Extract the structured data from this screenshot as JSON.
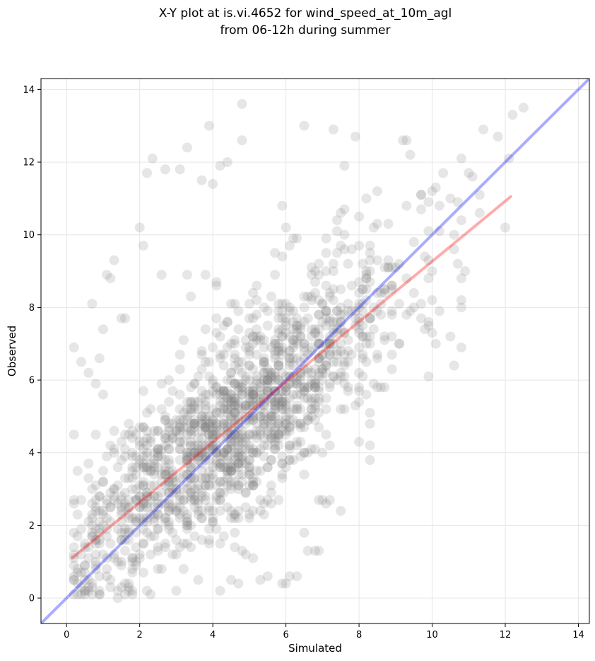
{
  "chart_data": {
    "type": "scatter",
    "title": [
      "X-Y plot at is.vi.4652 for wind_speed_at_10m_agl",
      "from 06-12h during summer"
    ],
    "xlabel": "Simulated",
    "ylabel": "Observed",
    "xlim": [
      -0.7,
      14.3
    ],
    "ylim": [
      -0.7,
      14.3
    ],
    "xticks": [
      "0",
      "2",
      "4",
      "6",
      "8",
      "10",
      "12",
      "14"
    ],
    "yticks": [
      "0",
      "2",
      "4",
      "6",
      "8",
      "10",
      "12",
      "14"
    ],
    "grid": true,
    "point_color": "#808080",
    "point_alpha": 0.2,
    "reference_line": {
      "name": "1:1 line",
      "color": "#0000ff",
      "alpha": 0.33,
      "x": [
        -0.7,
        14.3
      ],
      "y": [
        -0.7,
        14.3
      ]
    },
    "fit_line": {
      "name": "regression fit",
      "color": "#ff0000",
      "alpha": 0.33,
      "x": [
        0.15,
        12.15
      ],
      "y": [
        1.1,
        11.05
      ]
    },
    "points": {
      "x": [
        4.8,
        11.4,
        11.8,
        12.1,
        6.5,
        7.3,
        7.9,
        7.6,
        2.35,
        3.3,
        4.0,
        4.4,
        2.2,
        2.7,
        3.1,
        12.5,
        12.2,
        3.9,
        4.2,
        4.8,
        3.7,
        5.9,
        9.3,
        2.0,
        2.1,
        10.3,
        10.1,
        9.7,
        10.8,
        11.1,
        1.3,
        1.1,
        1.2,
        2.6,
        3.3,
        3.8,
        4.1,
        0.7,
        1.0,
        1.5,
        1.6,
        0.2,
        0.4,
        0.6,
        0.8,
        0.3,
        1.1,
        1.7,
        2.3,
        5.9,
        6.3,
        6.9,
        8.0,
        8.3,
        8.6,
        7.7,
        10.5,
        10.1,
        10.8,
        11.3,
        9.2,
        9.4,
        9.7,
        10.2,
        6.0,
        6.3,
        7.4,
        10.8,
        12.0,
        8.4,
        3.4,
        5.6,
        4.3,
        7.1,
        7.5,
        6.6,
        6.8,
        7.0,
        6.5,
        7.2,
        4.2,
        4.7,
        4.6,
        6.1,
        6.0,
        5.3,
        5.5,
        6.9,
        8.3,
        7.4,
        7.6,
        0.9,
        3.5,
        4.0,
        4.8,
        5.1,
        3.0,
        3.6,
        6.0,
        1.3,
        2.0,
        2.5
      ],
      "y": [
        13.6,
        12.9,
        12.7,
        12.1,
        13.0,
        12.9,
        12.7,
        11.9,
        12.1,
        12.4,
        11.4,
        12.0,
        11.7,
        11.8,
        11.8,
        13.5,
        13.3,
        13.0,
        11.9,
        12.6,
        11.5,
        10.8,
        12.6,
        10.2,
        9.7,
        11.7,
        11.3,
        11.1,
        12.1,
        11.6,
        9.3,
        8.9,
        8.8,
        8.9,
        8.9,
        8.9,
        8.7,
        8.1,
        7.4,
        7.7,
        7.7,
        6.9,
        6.5,
        6.2,
        5.9,
        2.3,
        1.1,
        0.3,
        0.1,
        0.4,
        0.6,
        1.3,
        4.3,
        3.8,
        5.8,
        7.9,
        7.2,
        7.0,
        8.0,
        10.6,
        12.6,
        12.2,
        11.1,
        10.8,
        10.2,
        9.9,
        10.4,
        8.2,
        10.2,
        10.2,
        8.3,
        8.3,
        5.7,
        2.6,
        2.4,
        1.3,
        1.3,
        2.7,
        1.8,
        2.7,
        0.2,
        0.4,
        1.4,
        0.6,
        0.4,
        0.5,
        0.6,
        2.7,
        9.3,
        10.1,
        10.0,
        6.6,
        2.5,
        2.1,
        1.3,
        1.1,
        1.2,
        0.5,
        7.3,
        4.0,
        3.1,
        2.5
      ]
    },
    "background_cloud": {
      "description_free_params": true,
      "count": 1500,
      "slope": 0.83,
      "intercept": 0.98,
      "x_center": 4.6,
      "x_spread": 2.3,
      "residual_sd": 1.35
    }
  }
}
